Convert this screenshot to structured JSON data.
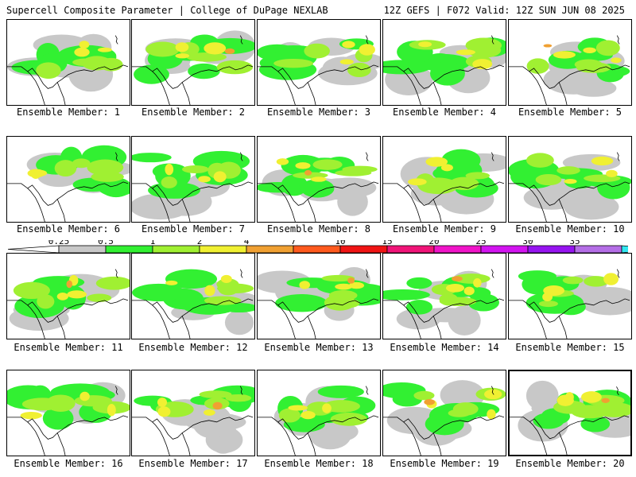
{
  "header": {
    "left": "Supercell Composite Parameter | College of DuPage NEXLAB",
    "right": "12Z GEFS | F072 Valid: 12Z SUN JUN 08 2025"
  },
  "caption_prefix": "Ensemble Member: ",
  "selected_member": 20,
  "members": [
    {
      "id": 1,
      "label": "Ensemble Member: 1"
    },
    {
      "id": 2,
      "label": "Ensemble Member: 2"
    },
    {
      "id": 3,
      "label": "Ensemble Member: 3"
    },
    {
      "id": 4,
      "label": "Ensemble Member: 4"
    },
    {
      "id": 5,
      "label": "Ensemble Member: 5"
    },
    {
      "id": 6,
      "label": "Ensemble Member: 6"
    },
    {
      "id": 7,
      "label": "Ensemble Member: 7"
    },
    {
      "id": 8,
      "label": "Ensemble Member: 8"
    },
    {
      "id": 9,
      "label": "Ensemble Member: 9"
    },
    {
      "id": 10,
      "label": "Ensemble Member: 10"
    },
    {
      "id": 11,
      "label": "Ensemble Member: 11"
    },
    {
      "id": 12,
      "label": "Ensemble Member: 12"
    },
    {
      "id": 13,
      "label": "Ensemble Member: 13"
    },
    {
      "id": 14,
      "label": "Ensemble Member: 14"
    },
    {
      "id": 15,
      "label": "Ensemble Member: 15"
    },
    {
      "id": 16,
      "label": "Ensemble Member: 16"
    },
    {
      "id": 17,
      "label": "Ensemble Member: 17"
    },
    {
      "id": 18,
      "label": "Ensemble Member: 18"
    },
    {
      "id": 19,
      "label": "Ensemble Member: 19"
    },
    {
      "id": 20,
      "label": "Ensemble Member: 20"
    }
  ],
  "colorbar": {
    "labels": [
      "0.25",
      "0.5",
      "1",
      "2",
      "4",
      "7",
      "10",
      "15",
      "20",
      "25",
      "30",
      "35"
    ],
    "colors": [
      "#c8c8c8",
      "#32f032",
      "#a0f032",
      "#f0f032",
      "#f0a032",
      "#ff5a1e",
      "#f01414",
      "#f01478",
      "#f014c8",
      "#d214f0",
      "#9614f0",
      "#b46ee6",
      "#32e6f0"
    ],
    "end_colors": {
      "left": "#ffffff",
      "right": "#32e6f0"
    }
  }
}
